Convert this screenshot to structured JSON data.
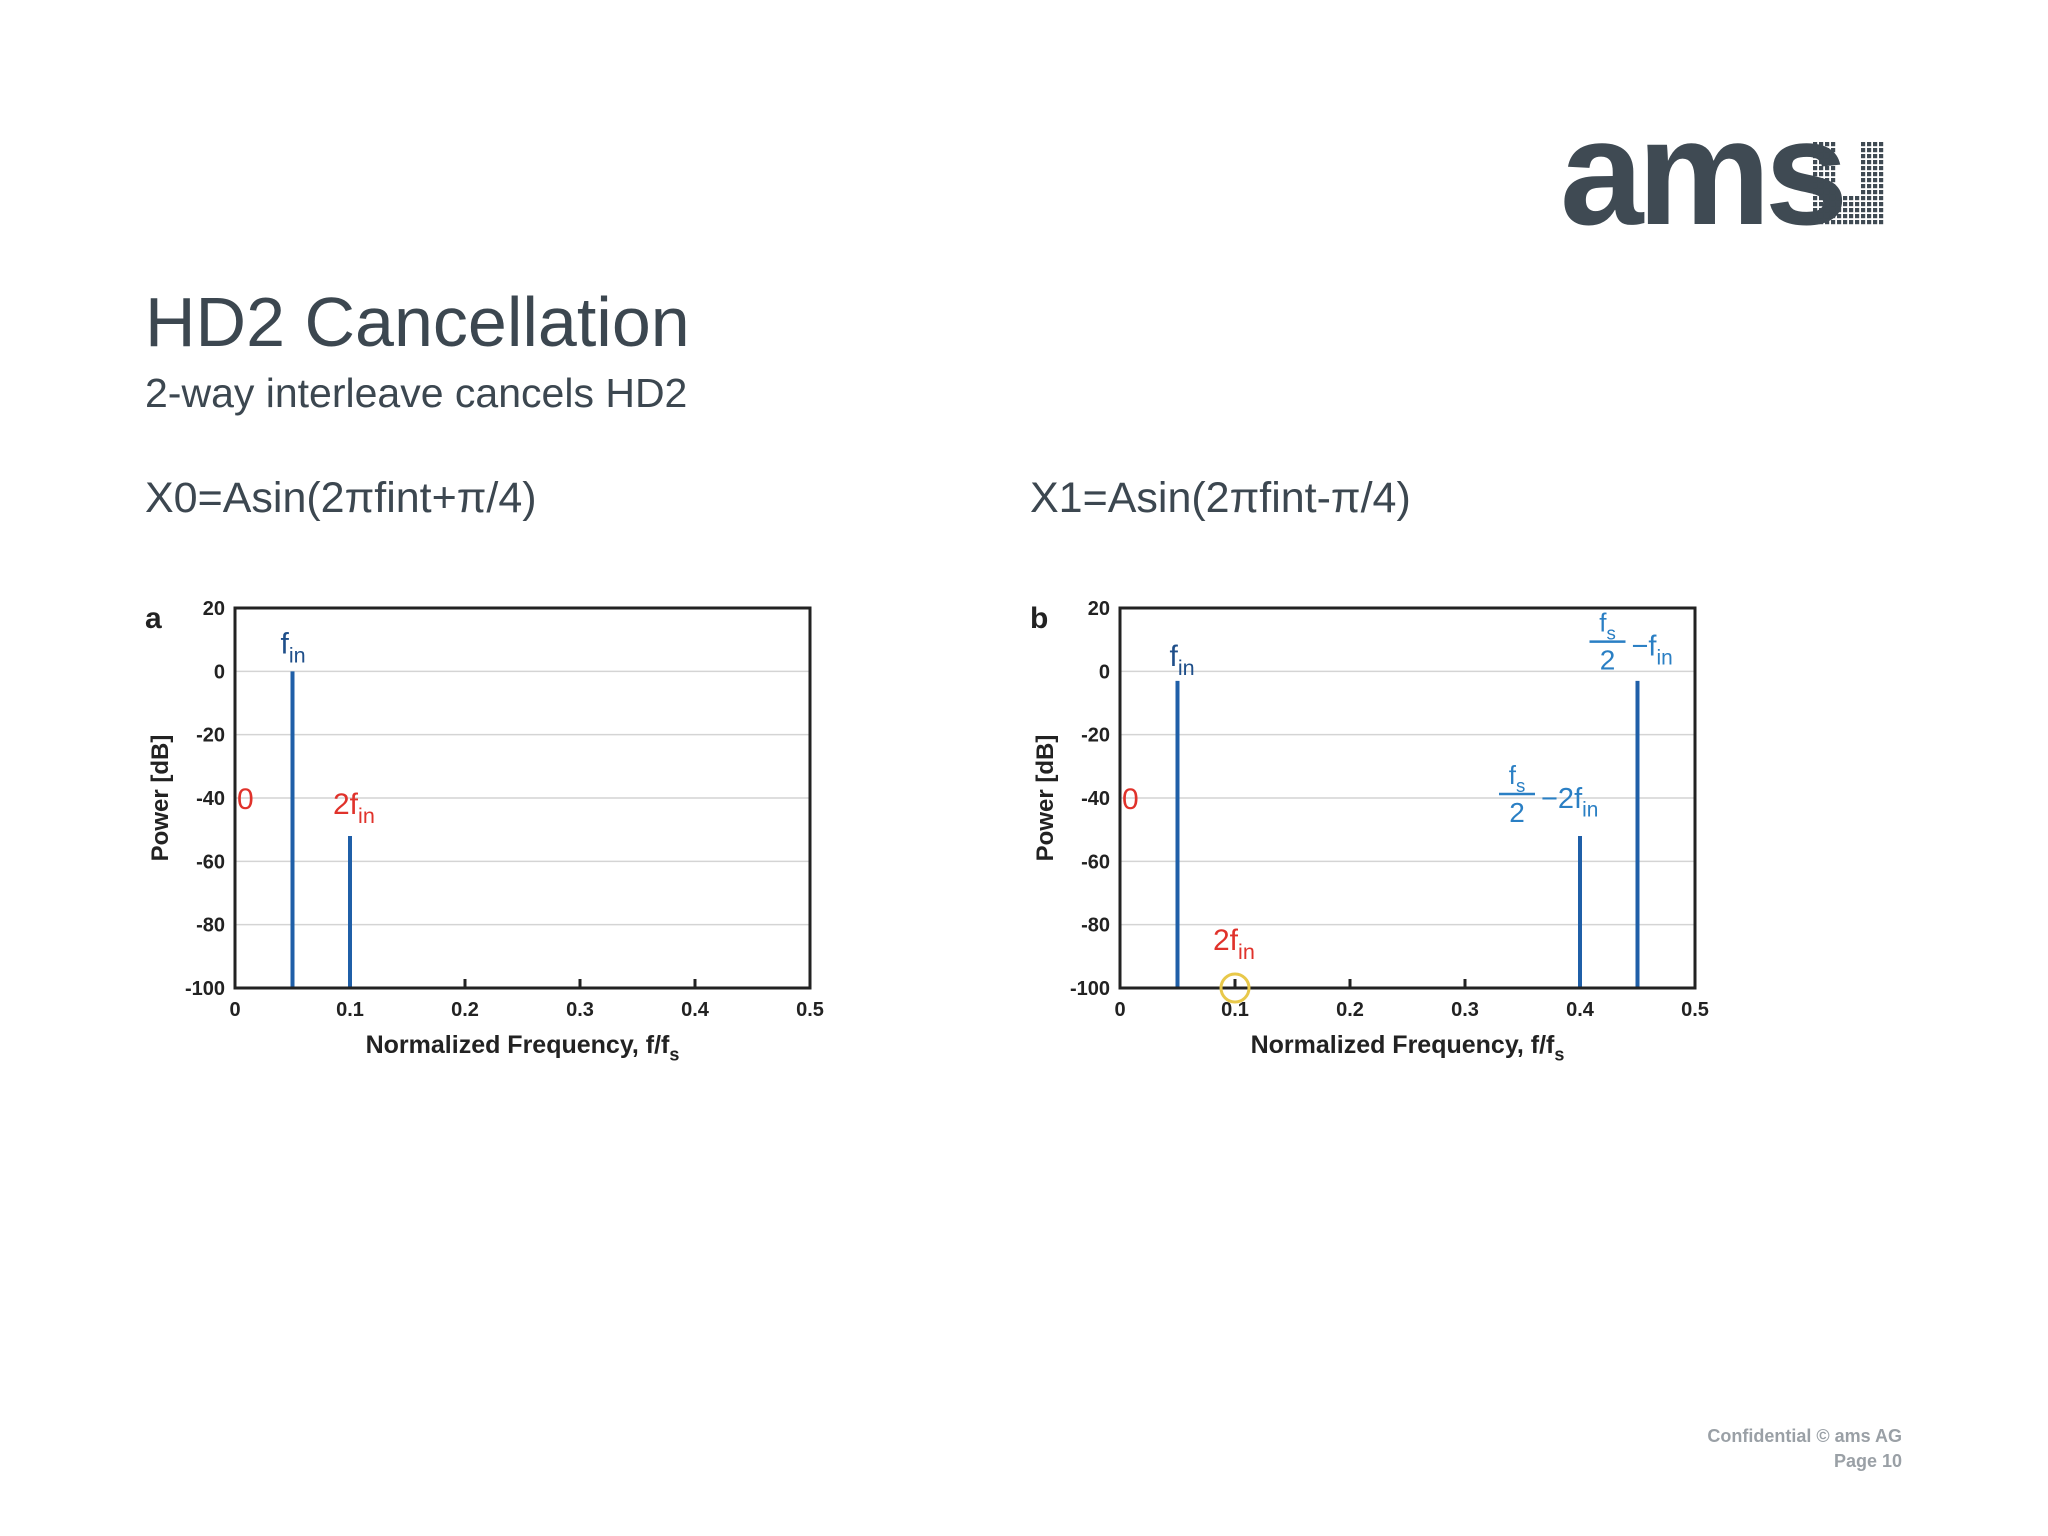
{
  "brand": {
    "logo_text": "ams",
    "color": "#3f4a53"
  },
  "slide": {
    "title": "HD2 Cancellation",
    "subtitle": "2-way interleave cancels HD2",
    "equation_left": "X0=Asin(2πfint+π/4)",
    "equation_right": "X1=Asin(2πfint-π/4)"
  },
  "footer": {
    "confidential": "Confidential © ams AG",
    "page": "Page 10"
  },
  "chart_data": [
    {
      "type": "bar",
      "panel_label": "a",
      "xlabel": "Normalized Frequency, f/f",
      "xlabel_sub": "s",
      "ylabel": "Power [dB]",
      "xlim": [
        0,
        0.5
      ],
      "ylim": [
        -100,
        20
      ],
      "xticks": [
        0,
        0.1,
        0.2,
        0.3,
        0.4,
        0.5
      ],
      "xtick_labels": [
        "0",
        "0.1",
        "0.2",
        "0.3",
        "0.4",
        "0.5"
      ],
      "yticks": [
        20,
        0,
        -20,
        -40,
        -60,
        -80,
        -100
      ],
      "ytick_labels": [
        "20",
        "0",
        "-20",
        "-40",
        "-60",
        "-80",
        "-100"
      ],
      "grid": true,
      "spikes": [
        {
          "x": 0.05,
          "y": 0,
          "color": "#1f5fa8",
          "label": "f",
          "label_sub": "in",
          "label_color": "#1f4f8a"
        },
        {
          "x": 0.1,
          "y": -52,
          "color": "#1f5fa8",
          "label": "2f",
          "label_sub": "in",
          "label_color": "#e0322b"
        }
      ],
      "marker_text": "0",
      "marker_color": "#e0322b"
    },
    {
      "type": "bar",
      "panel_label": "b",
      "xlabel": "Normalized Frequency, f/f",
      "xlabel_sub": "s",
      "ylabel": "Power [dB]",
      "xlim": [
        0,
        0.5
      ],
      "ylim": [
        -100,
        20
      ],
      "xticks": [
        0,
        0.1,
        0.2,
        0.3,
        0.4,
        0.5
      ],
      "xtick_labels": [
        "0",
        "0.1",
        "0.2",
        "0.3",
        "0.4",
        "0.5"
      ],
      "yticks": [
        20,
        0,
        -20,
        -40,
        -60,
        -80,
        -100
      ],
      "ytick_labels": [
        "20",
        "0",
        "-20",
        "-40",
        "-60",
        "-80",
        "-100"
      ],
      "grid": true,
      "spikes": [
        {
          "x": 0.05,
          "y": -3,
          "color": "#1f5fa8",
          "label": "f",
          "label_sub": "in",
          "label_color": "#1f4f8a"
        },
        {
          "x": 0.4,
          "y": -52,
          "color": "#1f5fa8"
        },
        {
          "x": 0.45,
          "y": -3,
          "color": "#1f5fa8"
        }
      ],
      "annotations": [
        {
          "id": "hd2",
          "text": "2f",
          "sub": "in",
          "color": "#e0322b"
        },
        {
          "id": "alias2",
          "frac_num": "f",
          "frac_num_sub": "s",
          "frac_den": "2",
          "rest": "−2f",
          "rest_sub": "in",
          "color": "#2a7fc4"
        },
        {
          "id": "alias1",
          "frac_num": "f",
          "frac_num_sub": "s",
          "frac_den": "2",
          "rest": "−f",
          "rest_sub": "in",
          "color": "#2a7fc4"
        }
      ],
      "highlight_circle_x": 0.1,
      "highlight_color": "#e8c84a",
      "marker_text": "0",
      "marker_color": "#e0322b"
    }
  ]
}
